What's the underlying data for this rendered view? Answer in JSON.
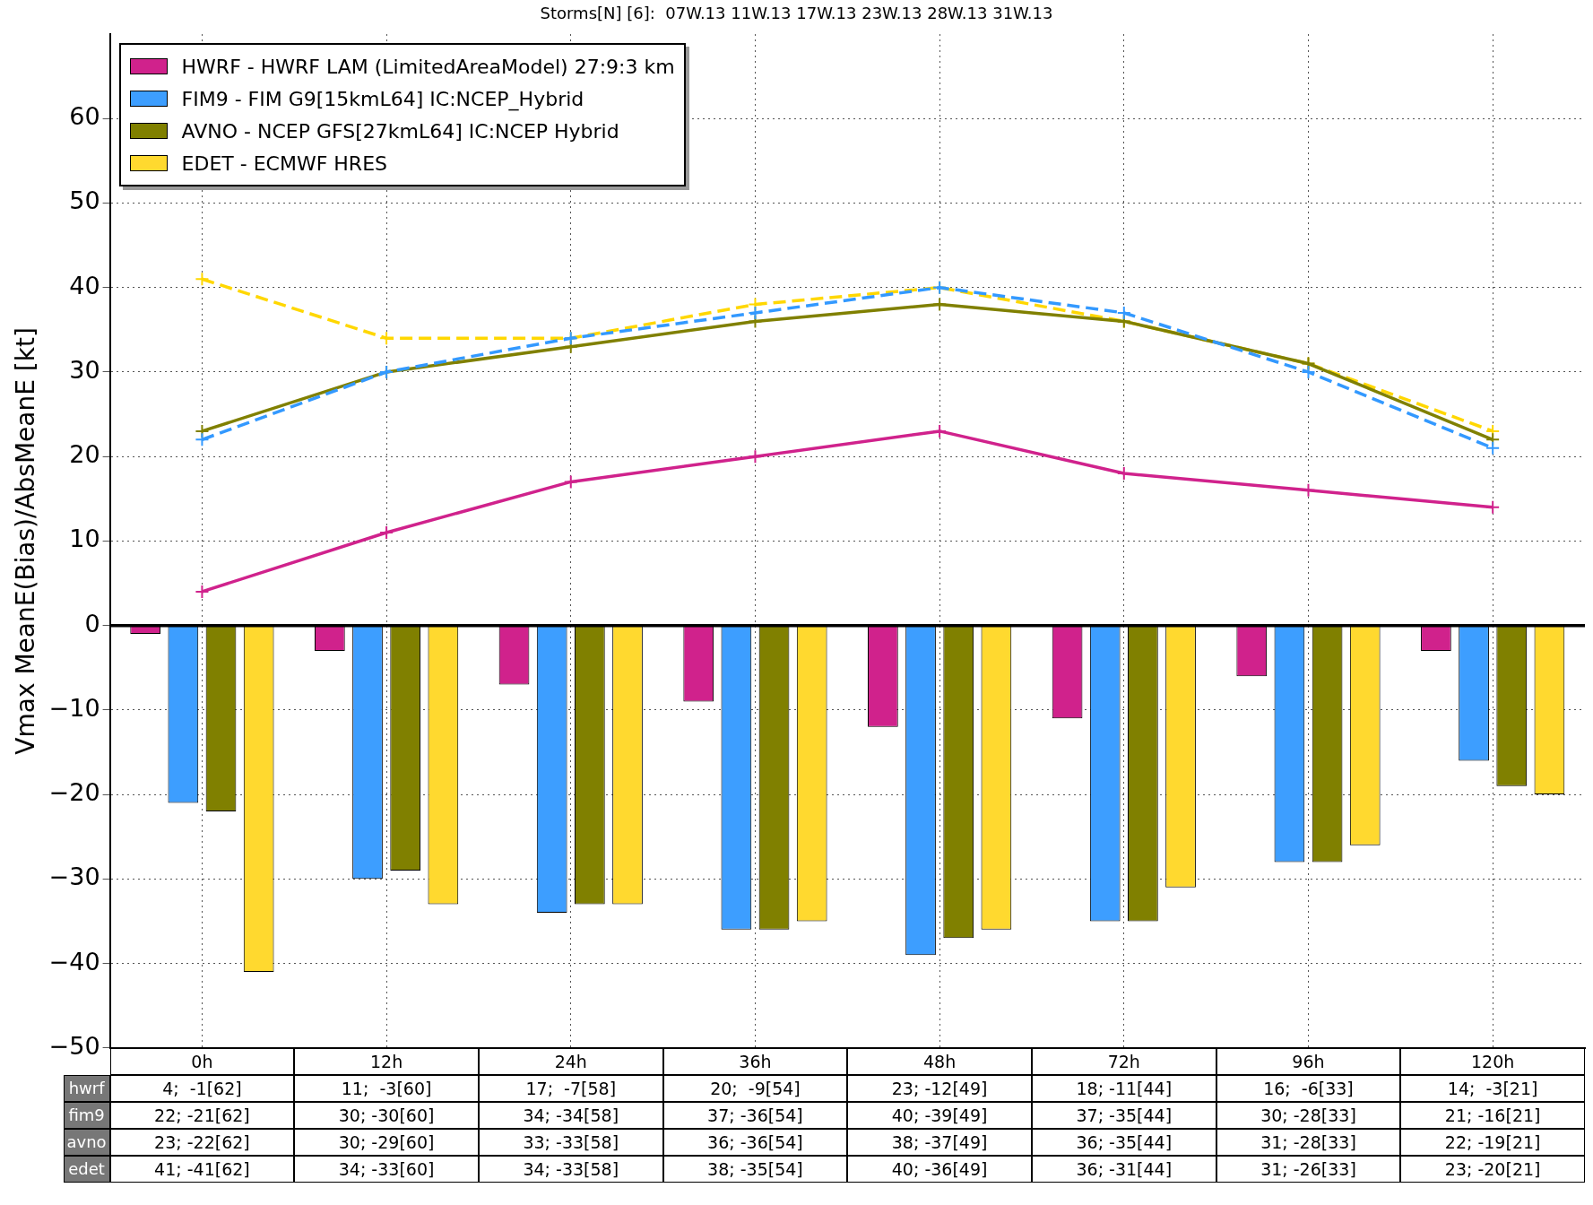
{
  "chart_data": {
    "type": "bar",
    "title": "Storms[N] [6]:  07W.13 11W.13 17W.13 23W.13 28W.13 31W.13",
    "ylabel": "Vmax MeanE(Bias)/AbsMeanE [kt]",
    "categories": [
      "0h",
      "12h",
      "24h",
      "36h",
      "48h",
      "72h",
      "96h",
      "120h"
    ],
    "ylim": [
      -50,
      70
    ],
    "yticks": [
      -50,
      -40,
      -30,
      -20,
      -10,
      0,
      10,
      20,
      30,
      40,
      50,
      60
    ],
    "grid": true,
    "legend": "top left",
    "ref_lines": [
      {
        "axis": "y",
        "value": 0,
        "color": "#000000"
      }
    ],
    "annotations": [
      "hwrf",
      "fim9",
      "avno",
      "edet"
    ],
    "series": [
      {
        "name": "HWRF - HWRF LAM (LimitedAreaModel) 27:9:3 km",
        "color": "#d0228c",
        "values": [
          -1,
          -3,
          -7,
          -9,
          -12,
          -11,
          -6,
          -3
        ]
      },
      {
        "name": "FIM9 - FIM G9[15kmL64] IC:NCEP_Hybrid",
        "color": "#3d9eff",
        "values": [
          -21,
          -30,
          -34,
          -36,
          -39,
          -35,
          -28,
          -16
        ]
      },
      {
        "name": "AVNO - NCEP GFS[27kmL64] IC:NCEP Hybrid",
        "color": "#808000",
        "values": [
          -22,
          -29,
          -33,
          -36,
          -37,
          -35,
          -28,
          -19
        ]
      },
      {
        "name": "EDET - ECMWF HRES",
        "color": "#ffd92f",
        "values": [
          -41,
          -33,
          -33,
          -35,
          -36,
          -31,
          -26,
          -20
        ]
      },
      {
        "type": "line",
        "color": "#d0228c",
        "line_style": "solid",
        "marker": "cross",
        "values": [
          4,
          11,
          17,
          20,
          23,
          18,
          16,
          14
        ],
        "value_labels": [
          "4;  -1[62]",
          "11;  -3[60]",
          "17;  -7[58]",
          "20;  -9[54]",
          "23; -12[49]",
          "18; -11[44]",
          "16;  -6[33]",
          "14;  -3[21]"
        ]
      },
      {
        "type": "line",
        "color": "#3399ff",
        "line_style": "dashed",
        "marker": "cross",
        "values": [
          22,
          30,
          34,
          37,
          40,
          37,
          30,
          21
        ],
        "value_labels": [
          "22; -21[62]",
          "30; -30[60]",
          "34; -34[58]",
          "37; -36[54]",
          "40; -39[49]",
          "37; -35[44]",
          "30; -28[33]",
          "21; -16[21]"
        ]
      },
      {
        "type": "line",
        "color": "#808000",
        "line_style": "solid",
        "marker": "cross",
        "values": [
          23,
          30,
          33,
          36,
          38,
          36,
          31,
          22
        ],
        "value_labels": [
          "23; -22[62]",
          "30; -29[60]",
          "33; -33[58]",
          "36; -36[54]",
          "38; -37[49]",
          "36; -35[44]",
          "31; -28[33]",
          "22; -19[21]"
        ]
      },
      {
        "type": "line",
        "color": "#ffd700",
        "line_style": "dashed",
        "marker": "cross",
        "values": [
          41,
          34,
          34,
          38,
          40,
          36,
          31,
          23
        ],
        "value_labels": [
          "41; -41[62]",
          "34; -33[60]",
          "34; -33[58]",
          "38; -35[54]",
          "40; -36[49]",
          "36; -31[44]",
          "31; -26[33]",
          "23; -20[21]"
        ]
      }
    ]
  }
}
